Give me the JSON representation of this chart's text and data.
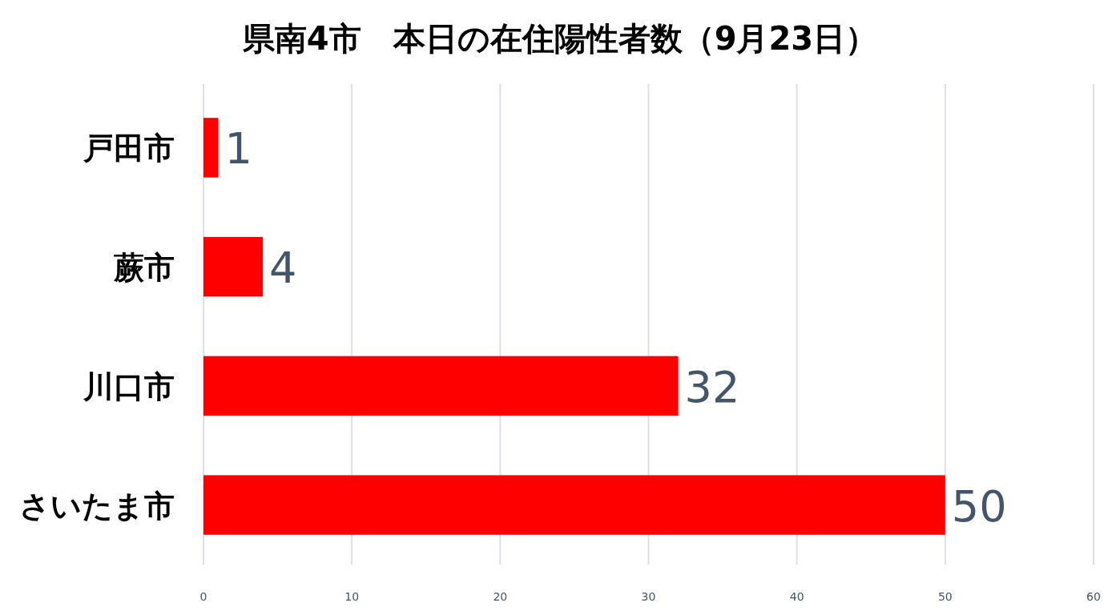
{
  "chart_data": {
    "type": "bar",
    "orientation": "horizontal",
    "title": "県南4市　本日の在住陽性者数（9月23日）",
    "categories": [
      "戸田市",
      "蕨市",
      "川口市",
      "さいたま市"
    ],
    "values": [
      1,
      4,
      32,
      50
    ],
    "color": "#ff0000",
    "xlim": [
      0,
      60
    ],
    "xticks": [
      0,
      10,
      20,
      30,
      40,
      50,
      60
    ],
    "grid": "x",
    "data_labels": true
  }
}
